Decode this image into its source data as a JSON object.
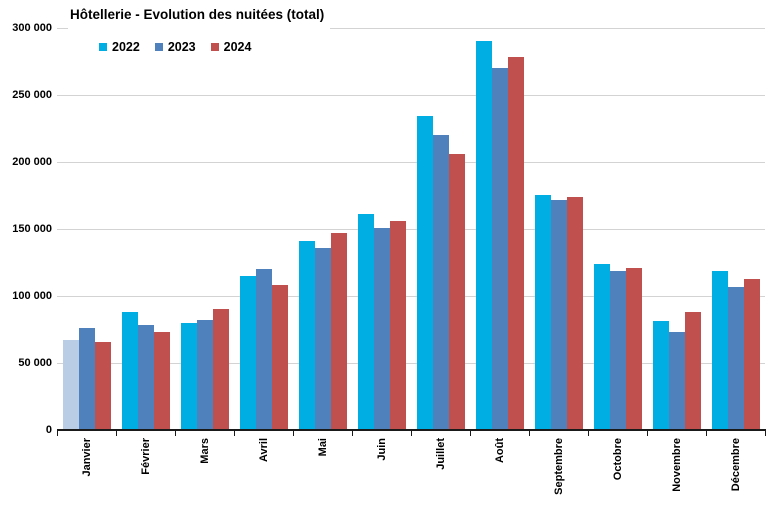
{
  "title": "Hôtellerie - Evolution des nuitées (total)",
  "legend": {
    "items": [
      {
        "label": "2022",
        "color": "#00AEE4"
      },
      {
        "label": "2023",
        "color": "#4F81BD"
      },
      {
        "label": "2024",
        "color": "#C0504D"
      }
    ]
  },
  "y_axis": {
    "tick_labels": [
      "300 000",
      "250 000",
      "200 000",
      "150 000",
      "100 000",
      "50 000",
      "0"
    ]
  },
  "chart_data": {
    "type": "bar",
    "title": "Hôtellerie - Evolution des nuitées (total)",
    "categories": [
      "Janvier",
      "Février",
      "Mars",
      "Avril",
      "Mai",
      "Juin",
      "Juillet",
      "Août",
      "Septembre",
      "Octobre",
      "Novembre",
      "Décembre"
    ],
    "series": [
      {
        "name": "2022",
        "color": "#00AEE4",
        "values": [
          67000,
          88000,
          80000,
          115000,
          141000,
          161000,
          234000,
          290000,
          175000,
          124000,
          81000,
          119000
        ]
      },
      {
        "name": "2023",
        "color": "#4F81BD",
        "values": [
          76000,
          78000,
          82000,
          120000,
          136000,
          151000,
          220000,
          270000,
          172000,
          119000,
          73000,
          107000
        ]
      },
      {
        "name": "2024",
        "color": "#C0504D",
        "values": [
          66000,
          73000,
          90000,
          108000,
          147000,
          156000,
          206000,
          278000,
          174000,
          121000,
          88000,
          113000
        ]
      }
    ],
    "special_bars": [
      {
        "series": "2022",
        "category": "Janvier",
        "color": "#B9CDE5"
      }
    ],
    "xlabel": "",
    "ylabel": "",
    "ylim": [
      0,
      300000
    ],
    "ytick_interval": 50000,
    "grid": "horizontal",
    "gridline_color": "#D3D3D3",
    "legend_position": "top-left",
    "x_labels_rotated_up": true
  }
}
